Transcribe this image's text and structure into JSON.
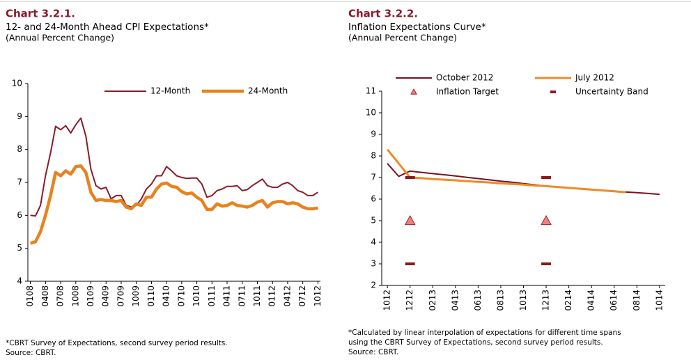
{
  "chart_data": [
    {
      "type": "line",
      "title": "Chart 3.2.1.",
      "subtitle": "12- and 24-Month Ahead CPI Expectations*",
      "unit": "(Annual Percent Change)",
      "categories": [
        "0108",
        null,
        null,
        "0408",
        null,
        null,
        "0708",
        null,
        null,
        "1008",
        null,
        null,
        "0109",
        null,
        null,
        "0409",
        null,
        null,
        "0709",
        null,
        null,
        "1009",
        null,
        null,
        "0110",
        null,
        null,
        "0410",
        null,
        null,
        "0710",
        null,
        null,
        "1010",
        null,
        null,
        "0111",
        null,
        null,
        "0411",
        null,
        null,
        "0711",
        null,
        null,
        "1011",
        null,
        null,
        "0112",
        null,
        null,
        "0412",
        null,
        null,
        "0712",
        null,
        null,
        "1012"
      ],
      "series": [
        {
          "name": "12-Month",
          "color": "#8b1a2b",
          "line_width": 2,
          "values": [
            6.0,
            5.98,
            6.3,
            7.2,
            7.9,
            8.7,
            8.6,
            8.72,
            8.5,
            8.75,
            8.95,
            8.4,
            7.4,
            6.9,
            6.8,
            6.85,
            6.5,
            6.6,
            6.6,
            6.3,
            6.25,
            6.3,
            6.5,
            6.8,
            6.95,
            7.2,
            7.2,
            7.48,
            7.35,
            7.2,
            7.15,
            7.12,
            7.13,
            7.13,
            6.95,
            6.55,
            6.6,
            6.75,
            6.8,
            6.88,
            6.88,
            6.9,
            6.75,
            6.78,
            6.9,
            7.0,
            7.1,
            6.9,
            6.85,
            6.85,
            6.95,
            7.0,
            6.9,
            6.75,
            6.7,
            6.6,
            6.6,
            6.7
          ]
        },
        {
          "name": "24-Month",
          "color": "#e8821e",
          "line_width": 4.5,
          "values": [
            5.15,
            5.2,
            5.5,
            6.0,
            6.6,
            7.3,
            7.2,
            7.35,
            7.25,
            7.48,
            7.5,
            7.3,
            6.7,
            6.45,
            6.48,
            6.45,
            6.45,
            6.42,
            6.45,
            6.25,
            6.2,
            6.35,
            6.3,
            6.55,
            6.55,
            6.8,
            6.95,
            6.98,
            6.88,
            6.85,
            6.72,
            6.65,
            6.68,
            6.55,
            6.45,
            6.18,
            6.18,
            6.35,
            6.28,
            6.3,
            6.38,
            6.3,
            6.28,
            6.25,
            6.3,
            6.4,
            6.45,
            6.25,
            6.38,
            6.42,
            6.42,
            6.35,
            6.38,
            6.35,
            6.25,
            6.2,
            6.2,
            6.22
          ]
        }
      ],
      "ylim": [
        4,
        10
      ],
      "yticks": [
        4,
        5,
        6,
        7,
        8,
        9,
        10
      ],
      "grid": false,
      "notes": [
        "*CBRT Survey of Expectations,  second survey period results.",
        "Source: CBRT."
      ]
    },
    {
      "type": "line",
      "title": "Chart 3.2.2.",
      "subtitle": "Inflation Expectations Curve*",
      "unit": "(Annual Percent Change)",
      "categories": [
        "1012",
        null,
        "1212",
        null,
        "0213",
        null,
        "0413",
        null,
        "0613",
        null,
        "0813",
        null,
        "1013",
        null,
        "1213",
        null,
        "0214",
        null,
        "0414",
        null,
        "0614",
        null,
        "0814",
        null,
        "1014"
      ],
      "series": [
        {
          "name": "October 2012",
          "color": "#7a1020",
          "line_width": 2,
          "values": [
            7.65,
            7.05,
            7.3,
            7.24,
            7.18,
            7.13,
            7.07,
            7.01,
            6.95,
            6.89,
            6.83,
            6.78,
            6.72,
            6.66,
            6.6,
            6.56,
            6.52,
            6.49,
            6.45,
            6.41,
            6.37,
            6.33,
            6.3,
            6.26,
            6.22
          ]
        },
        {
          "name": "July 2012",
          "color": "#f08a24",
          "line_width": 3,
          "values": [
            8.3,
            7.65,
            7.0,
            6.97,
            6.93,
            6.9,
            6.87,
            6.83,
            6.8,
            6.77,
            6.73,
            6.7,
            6.67,
            6.63,
            6.6,
            6.56,
            6.52,
            6.48,
            6.44,
            6.4,
            6.36,
            6.32,
            null,
            null,
            null
          ]
        },
        {
          "name": "Inflation Target",
          "color": "#f08080",
          "marker": "triangle",
          "values": [
            null,
            null,
            5,
            null,
            null,
            null,
            null,
            null,
            null,
            null,
            null,
            null,
            null,
            null,
            5,
            null,
            null,
            null,
            null,
            null,
            null,
            null,
            null,
            null,
            null
          ]
        },
        {
          "name": "Uncertainty Band",
          "color": "#8b1a1a",
          "marker": "dash",
          "values": [
            null,
            null,
            7,
            null,
            null,
            null,
            null,
            null,
            null,
            null,
            null,
            null,
            null,
            null,
            7,
            null,
            null,
            null,
            null,
            null,
            null,
            null,
            null,
            null,
            null
          ],
          "lower": [
            null,
            null,
            3,
            null,
            null,
            null,
            null,
            null,
            null,
            null,
            null,
            null,
            null,
            null,
            3,
            null,
            null,
            null,
            null,
            null,
            null,
            null,
            null,
            null,
            null
          ]
        }
      ],
      "ylim": [
        2,
        11
      ],
      "yticks": [
        2,
        3,
        4,
        5,
        6,
        7,
        8,
        9,
        10,
        11
      ],
      "grid": false,
      "notes": [
        "*Calculated by linear interpolation of expectations for different time spans",
        "using the CBRT Survey of Expectations, second survey period results.",
        "Source: CBRT."
      ]
    }
  ]
}
